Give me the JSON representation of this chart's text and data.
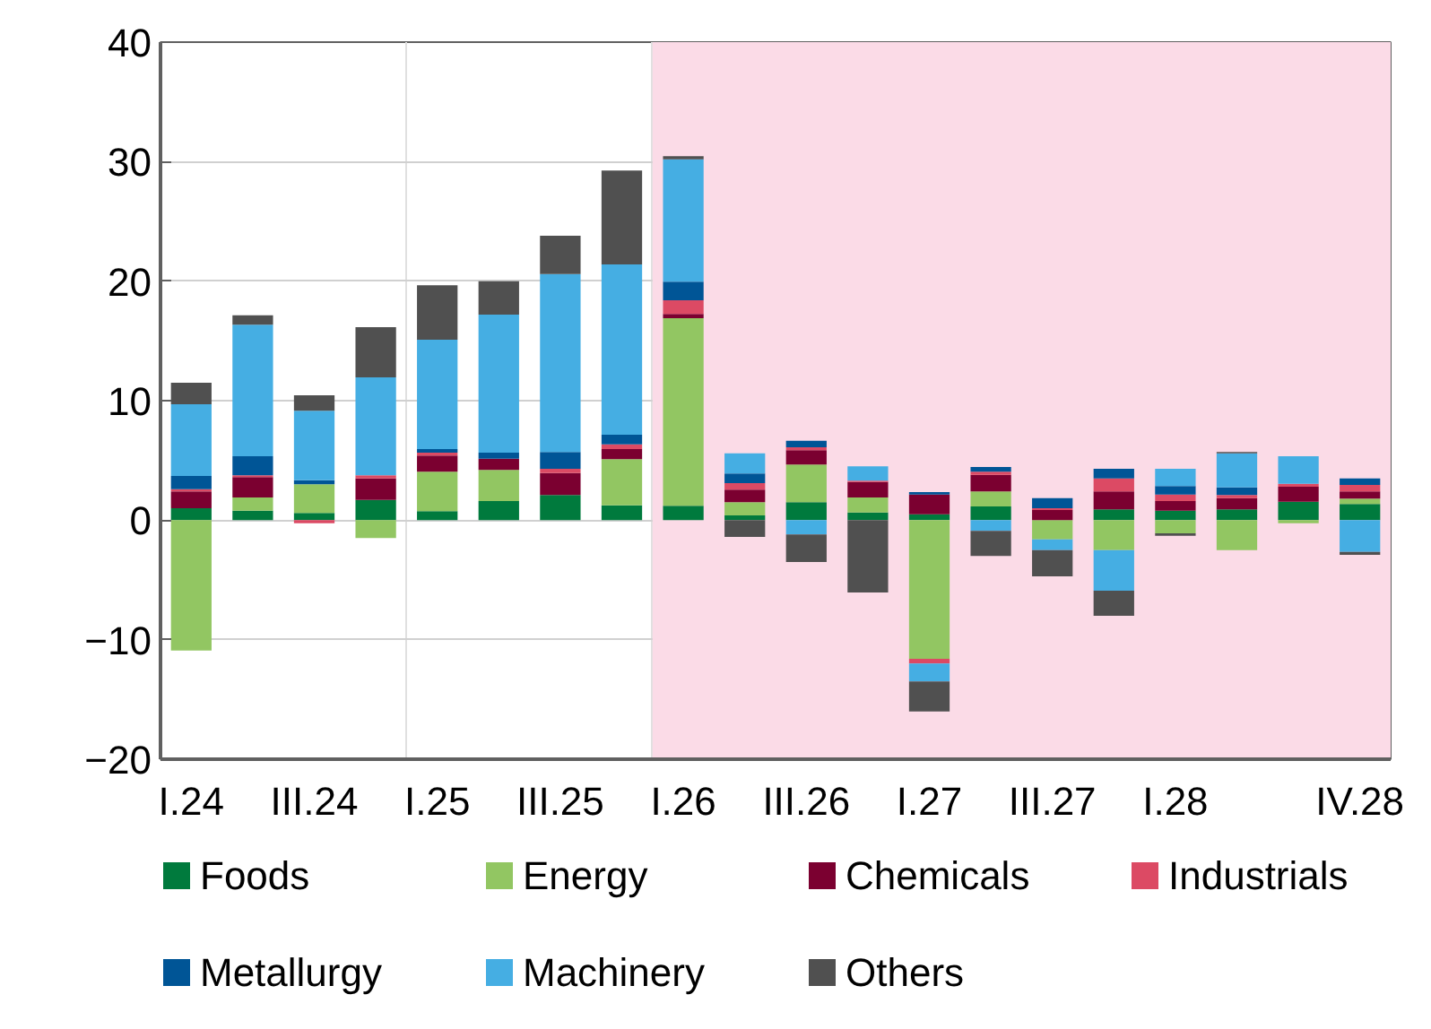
{
  "chart_data": {
    "type": "bar",
    "stacked": true,
    "categories": [
      "I.24",
      null,
      "III.24",
      null,
      "I.25",
      null,
      "III.25",
      null,
      "I.26",
      null,
      "III.26",
      null,
      "I.27",
      null,
      "III.27",
      null,
      "I.28",
      null,
      null,
      "IV.28"
    ],
    "series": [
      {
        "name": "Foods",
        "color": "#007a3d",
        "values": [
          1.0,
          0.8,
          0.6,
          1.7,
          0.75,
          1.6,
          2.1,
          1.25,
          1.2,
          0.4,
          1.5,
          0.65,
          0.5,
          1.15,
          null,
          0.9,
          0.8,
          0.9,
          1.55,
          1.35
        ]
      },
      {
        "name": "Energy",
        "color": "#92c662",
        "values": [
          -10.9,
          1.1,
          2.4,
          -1.5,
          3.3,
          2.6,
          0,
          3.85,
          15.7,
          1.1,
          3.15,
          1.25,
          -11.6,
          1.25,
          -1.6,
          -2.5,
          -1.1,
          -2.5,
          -0.25,
          0.45
        ]
      },
      {
        "name": "Chemicals",
        "color": "#7b0030",
        "values": [
          1.4,
          1.7,
          0,
          1.8,
          1.35,
          0.95,
          1.85,
          0.85,
          0.35,
          1.05,
          1.2,
          1.3,
          1.65,
          1.4,
          0.85,
          1.5,
          0.8,
          0.95,
          1.25,
          0.6
        ]
      },
      {
        "name": "Industrials",
        "color": "#dc4a64",
        "values": [
          0.2,
          0.15,
          -0.25,
          0.25,
          0.25,
          null,
          0.35,
          0.4,
          1.15,
          0.55,
          0.25,
          0.1,
          -0.4,
          0.25,
          0.15,
          1.1,
          0.55,
          0.25,
          0.25,
          0.55
        ]
      },
      {
        "name": "Metallurgy",
        "color": "#005596",
        "values": [
          1.1,
          1.6,
          0.35,
          0,
          0.3,
          0.5,
          1.4,
          0.8,
          1.55,
          0.8,
          0.55,
          0,
          0.2,
          0.4,
          0.85,
          0.8,
          0.7,
          0.65,
          0,
          0.55
        ]
      },
      {
        "name": "Machinery",
        "color": "#45aee3",
        "values": [
          6.0,
          11.0,
          5.8,
          8.2,
          9.15,
          11.55,
          14.9,
          14.25,
          10.25,
          1.7,
          -1.2,
          1.2,
          -1.5,
          -0.9,
          -0.9,
          -3.4,
          1.45,
          2.85,
          2.3,
          -2.65
        ]
      },
      {
        "name": "Others",
        "color": "#505050",
        "values": [
          1.8,
          0.8,
          1.3,
          4.2,
          4.55,
          2.8,
          3.2,
          7.85,
          0.25,
          -1.4,
          -2.3,
          -6.05,
          -2.5,
          -2.1,
          -2.2,
          -2.1,
          -0.2,
          0.1,
          0,
          -0.25
        ]
      }
    ],
    "ylim": [
      -20,
      40
    ],
    "yticks": [
      -20,
      -10,
      0,
      10,
      20,
      30,
      40
    ],
    "bands": [
      {
        "axis": "x",
        "from": "I.26",
        "to": "IV.28",
        "color": "#fbdbe7"
      }
    ],
    "grid": true,
    "legend": "bottom"
  }
}
